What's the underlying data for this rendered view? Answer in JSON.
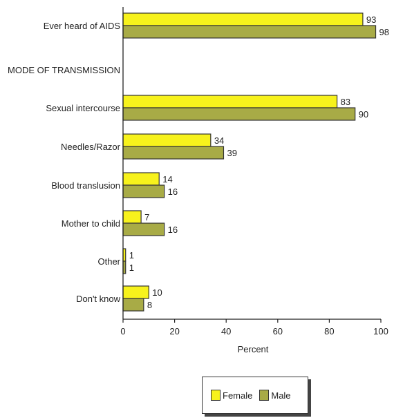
{
  "chart_data": {
    "type": "bar",
    "orientation": "horizontal",
    "xlabel": "Percent",
    "xlim": [
      0,
      100
    ],
    "xticks": [
      0,
      20,
      40,
      60,
      80,
      100
    ],
    "grid": false,
    "legend_position": "bottom",
    "section_header": "MODE OF TRANSMISSION",
    "categories": [
      "Ever heard of AIDS",
      "Sexual intercourse",
      "Needles/Razor",
      "Blood translusion",
      "Mother to child",
      "Other",
      "Don't know"
    ],
    "series": [
      {
        "name": "Female",
        "color": "#f7f21c",
        "values": [
          93,
          83,
          34,
          14,
          7,
          1,
          10
        ]
      },
      {
        "name": "Male",
        "color": "#a8ab46",
        "values": [
          98,
          90,
          39,
          16,
          16,
          1,
          8
        ]
      }
    ]
  },
  "legend": {
    "female_label": "Female",
    "male_label": "Male"
  }
}
